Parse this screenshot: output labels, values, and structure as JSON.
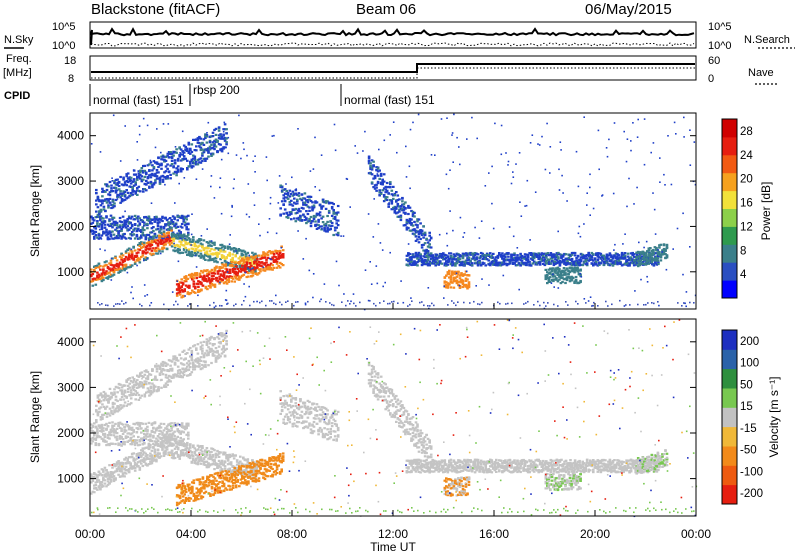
{
  "header": {
    "station": "Blackstone (fitACF)",
    "beam": "Beam 06",
    "date": "06/May/2015"
  },
  "left_labels": {
    "nsky": "N.Sky",
    "freq": "Freq.",
    "freq_unit": "[MHz]",
    "cpid": "CPID"
  },
  "right_labels": {
    "nsearch": "N.Search",
    "nave": "Nave"
  },
  "nsky_ticks": [
    "10^5",
    "10^0"
  ],
  "nsearch_ticks": [
    "10^5",
    "10^0"
  ],
  "freq_ticks": [
    "18",
    "8"
  ],
  "nave_ticks": [
    "60",
    "0"
  ],
  "cpid_segments": [
    {
      "label": "normal (fast) 151",
      "start_hour": 0
    },
    {
      "label": "rbsp 200",
      "start_hour": 3.9
    },
    {
      "label": "normal (fast) 151",
      "start_hour": 10.0
    }
  ],
  "panels": {
    "power": {
      "ylabel": "Slant Range [km]",
      "cbar_label": "Power [dB]"
    },
    "velocity": {
      "ylabel": "Slant Range [km]",
      "cbar_label": "Velocity [m s⁻¹]"
    }
  },
  "xaxis": {
    "label": "Time UT"
  },
  "chart_data": [
    {
      "type": "heatmap",
      "title": "Power",
      "x_range_hours": [
        0,
        24
      ],
      "xticks": [
        "00:00",
        "04:00",
        "08:00",
        "12:00",
        "16:00",
        "20:00",
        "00:00"
      ],
      "ylabel": "Slant Range [km]",
      "ylim": [
        180,
        4500
      ],
      "yticks": [
        1000,
        2000,
        3000,
        4000
      ],
      "colorbar": {
        "label": "Power [dB]",
        "ticks": [
          4,
          8,
          12,
          16,
          20,
          24,
          28
        ],
        "range": [
          0,
          30
        ],
        "colors": [
          "#0000ff",
          "#2a4fc1",
          "#3a7f8a",
          "#2e9a4e",
          "#8cd04a",
          "#f2e13a",
          "#f6a11e",
          "#f25a12",
          "#e61e10",
          "#d00000"
        ]
      }
    },
    {
      "type": "heatmap",
      "title": "Velocity",
      "x_range_hours": [
        0,
        24
      ],
      "xticks": [
        "00:00",
        "04:00",
        "08:00",
        "12:00",
        "16:00",
        "20:00",
        "00:00"
      ],
      "ylabel": "Slant Range [km]",
      "ylim": [
        180,
        4500
      ],
      "yticks": [
        1000,
        2000,
        3000,
        4000
      ],
      "colorbar": {
        "label": "Velocity [m s⁻¹]",
        "ticks": [
          "200",
          "100",
          "50",
          "15",
          "-15",
          "-50",
          "-100",
          "-200"
        ],
        "colors": [
          "#1d2fc0",
          "#2a62a9",
          "#2e8f3e",
          "#78c850",
          "#c2c2c2",
          "#f0b838",
          "#f28a1a",
          "#ee5a10",
          "#e61e10"
        ]
      }
    }
  ]
}
